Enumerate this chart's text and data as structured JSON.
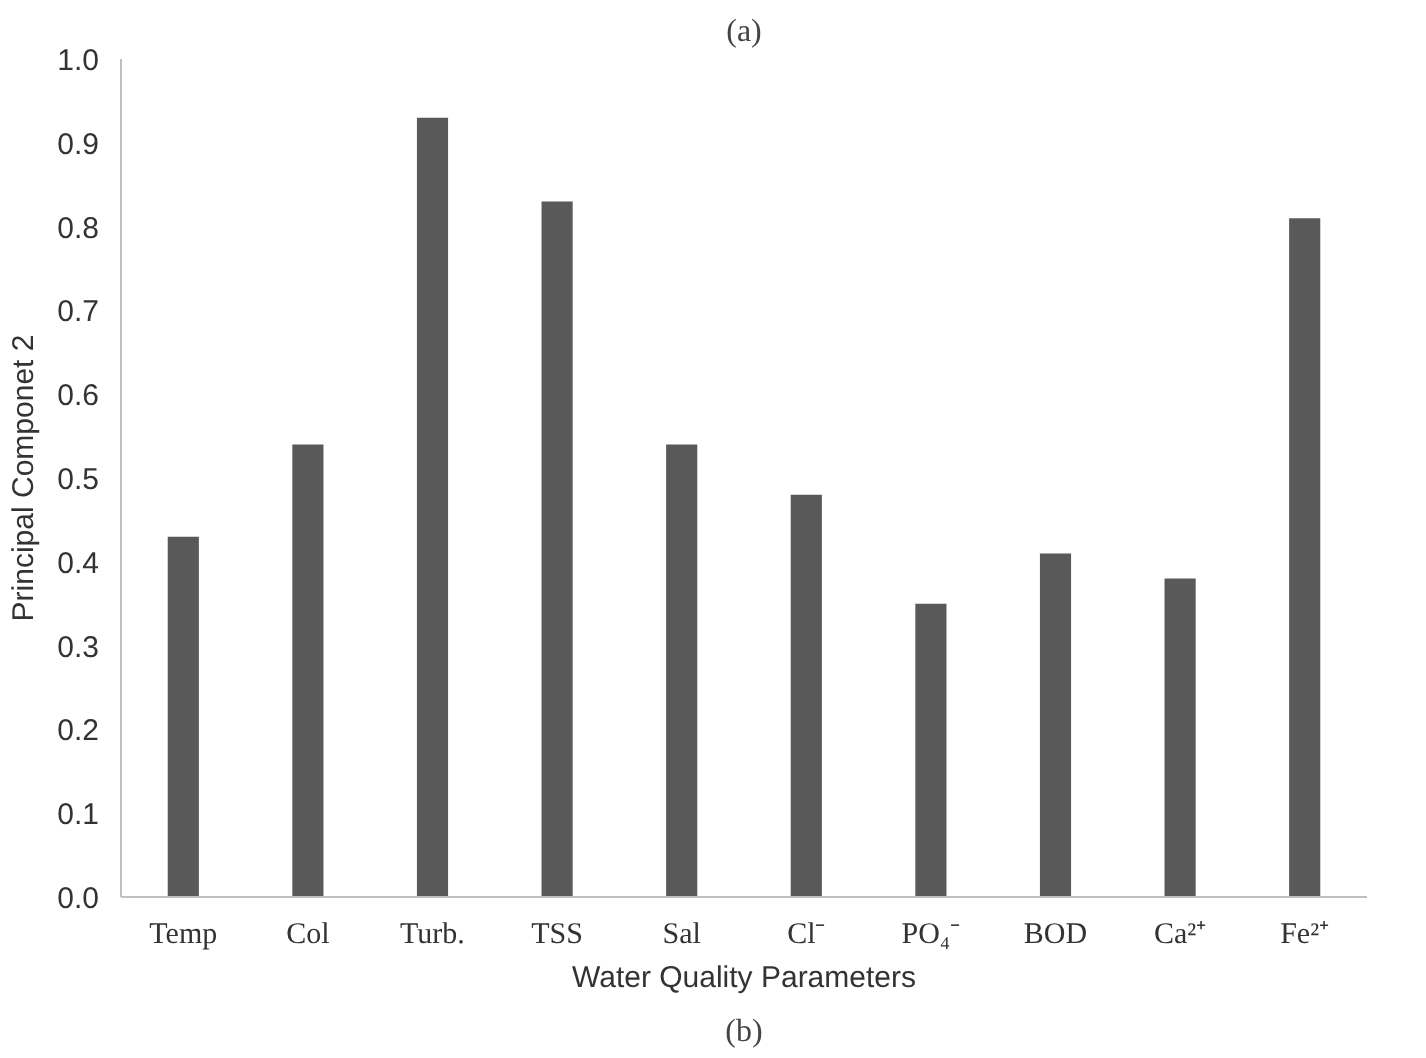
{
  "chart_data": {
    "type": "bar",
    "xlabel": "Water Quality Parameters",
    "ylabel": "Principal Componet 2",
    "categories": [
      "Temp",
      "Col",
      "Turb.",
      "TSS",
      "Sal",
      "Cl⁻",
      "PO₄⁻",
      "BOD",
      "Ca²⁺",
      "Fe²⁺"
    ],
    "values": [
      0.43,
      0.54,
      0.93,
      0.83,
      0.54,
      0.48,
      0.35,
      0.41,
      0.38,
      0.81
    ],
    "color": "#595959",
    "ylim": [
      0,
      1.0
    ],
    "yticks": [
      {
        "value": 0,
        "label": "0.0"
      },
      {
        "value": 0.1,
        "label": "0.1"
      },
      {
        "value": 0.2,
        "label": "0.2"
      },
      {
        "value": 0.3,
        "label": "0.3"
      },
      {
        "value": 0.4,
        "label": "0.4"
      },
      {
        "value": 0.5,
        "label": "0.5"
      },
      {
        "value": 0.6,
        "label": "0.6"
      },
      {
        "value": 0.7,
        "label": "0.7"
      },
      {
        "value": 0.8,
        "label": "0.8"
      },
      {
        "value": 0.9,
        "label": "0.9"
      },
      {
        "value": 1.0,
        "label": "1.0"
      }
    ],
    "grid": false,
    "annotations": [
      "(a)",
      "(b)"
    ]
  }
}
